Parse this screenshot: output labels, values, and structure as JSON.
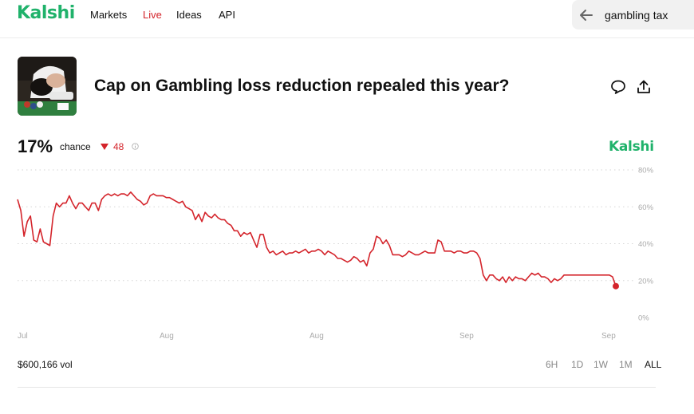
{
  "colors": {
    "brand": "#20b26b",
    "accent_red": "#d4242b"
  },
  "header": {
    "logo": "Kalshi",
    "nav": [
      {
        "label": "Markets"
      },
      {
        "label": "Live"
      },
      {
        "label": "Ideas"
      },
      {
        "label": "API"
      }
    ],
    "search": {
      "value": "gambling tax",
      "back_icon": "arrow-left-icon"
    }
  },
  "market": {
    "title": "Cap on Gambling loss reduction repealed this year?",
    "thumbnail": "casino-player-photo",
    "actions": [
      {
        "icon": "comment-icon"
      },
      {
        "icon": "share-icon"
      }
    ]
  },
  "stats": {
    "chance_value": "17%",
    "chance_label": "chance",
    "change": "48",
    "info_icon": "info-icon",
    "brand": "Kalshi"
  },
  "chart_data": {
    "type": "line",
    "ylim": [
      0,
      80
    ],
    "y_ticks": [
      {
        "label": "80%",
        "value": 80
      },
      {
        "label": "60%",
        "value": 60
      },
      {
        "label": "40%",
        "value": 40
      },
      {
        "label": "20%",
        "value": 20
      },
      {
        "label": "0%",
        "value": 0
      }
    ],
    "x_ticks": [
      "Jul",
      "Aug",
      "Aug",
      "Sep",
      "Sep"
    ],
    "grid": "horizontal-dotted",
    "series": [
      {
        "color": "#d4242b",
        "values": [
          64,
          58,
          44,
          52,
          55,
          42,
          41,
          48,
          41,
          40,
          39,
          55,
          62,
          60,
          62,
          62,
          66,
          62,
          59,
          62,
          62,
          60,
          58,
          62,
          62,
          58,
          64,
          66,
          67,
          66,
          67,
          66,
          67,
          67,
          66,
          68,
          66,
          64,
          63,
          61,
          62,
          66,
          67,
          66,
          66,
          66,
          65,
          65,
          64,
          63,
          62,
          63,
          60,
          59,
          58,
          53,
          56,
          52,
          57,
          55,
          54,
          56,
          54,
          53,
          53,
          51,
          50,
          47,
          47,
          44,
          46,
          45,
          46,
          42,
          38,
          45,
          45,
          38,
          35,
          36,
          34,
          35,
          36,
          34,
          35,
          35,
          36,
          35,
          36,
          37,
          35,
          36,
          36,
          37,
          36,
          34,
          36,
          35,
          34,
          32,
          32,
          31,
          30,
          31,
          33,
          32,
          30,
          31,
          28,
          35,
          37,
          44,
          43,
          40,
          42,
          39,
          34,
          34,
          34,
          33,
          34,
          36,
          35,
          34,
          34,
          35,
          36,
          35,
          35,
          35,
          42,
          41,
          36,
          36,
          36,
          35,
          36,
          36,
          35,
          35,
          36,
          36,
          35,
          32,
          23,
          20,
          23,
          23,
          21,
          20,
          22,
          19,
          22,
          20,
          22,
          21,
          21,
          20,
          22,
          24,
          23,
          24,
          22,
          22,
          21,
          19,
          21,
          20,
          21,
          23,
          23,
          23,
          23,
          23,
          23,
          23,
          23,
          23,
          23,
          23,
          23,
          23,
          23,
          23,
          22,
          17
        ]
      }
    ]
  },
  "footer": {
    "volume": "$600,166 vol",
    "ranges": [
      {
        "label": "6H"
      },
      {
        "label": "1D"
      },
      {
        "label": "1W"
      },
      {
        "label": "1M"
      },
      {
        "label": "ALL"
      }
    ]
  }
}
